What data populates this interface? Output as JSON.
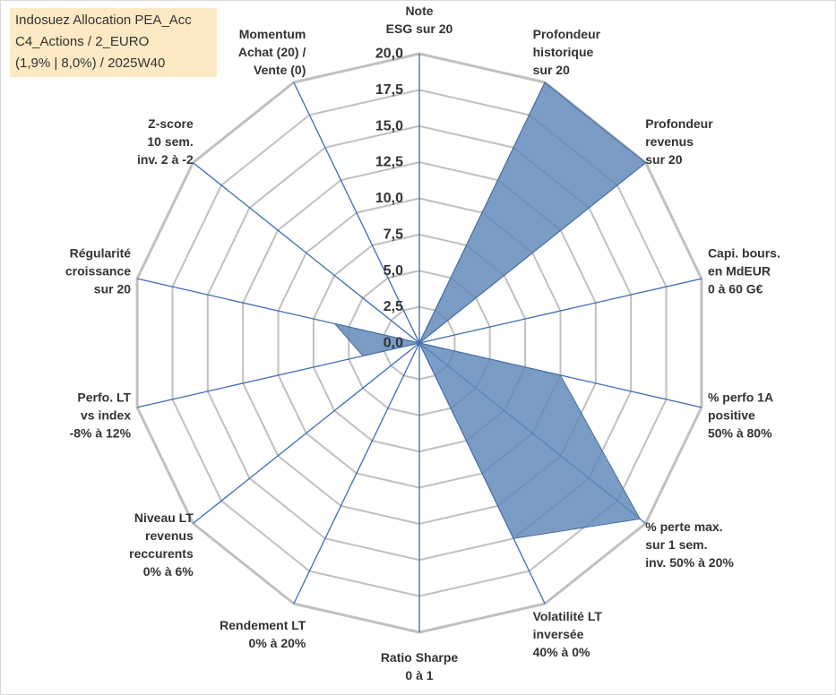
{
  "title_lines": [
    "Indosuez Allocation PEA_Acc",
    "C4_Actions / 2_EURO",
    "(1,9% | 8,0%) / 2025W40"
  ],
  "colors": {
    "fill": "#5e87b8",
    "fill_stroke": "#4a70a0",
    "grid": "#c0c0c0",
    "spoke": "#3f6bb5",
    "text": "#333333",
    "title_bg": "#fde9c4"
  },
  "chart_data": {
    "type": "radar",
    "title": "Indosuez Allocation PEA_Acc C4_Actions / 2_EURO (1,9% | 8,0%) / 2025W40",
    "rmin": 0,
    "rmax": 20,
    "step": 2.5,
    "tick_labels": [
      "0,0",
      "2,5",
      "5,0",
      "7,5",
      "10,0",
      "12,5",
      "15,0",
      "17,5",
      "20,0"
    ],
    "axes": [
      {
        "label": [
          "Note",
          "ESG sur 20"
        ],
        "value": 0
      },
      {
        "label": [
          "Profondeur",
          "historique",
          "sur 20"
        ],
        "value": 20
      },
      {
        "label": [
          "Profondeur",
          "revenus",
          "sur 20"
        ],
        "value": 20
      },
      {
        "label": [
          "Capi. bours.",
          "en MdEUR",
          "0 à 60 G€"
        ],
        "value": 0
      },
      {
        "label": [
          "% perfo 1A",
          "positive",
          "50% à 80%"
        ],
        "value": 10
      },
      {
        "label": [
          "% perte max.",
          "sur 1 sem.",
          "inv. 50% à 20%"
        ],
        "value": 19.5
      },
      {
        "label": [
          "Volatilité LT",
          "inversée",
          "40% à 0%"
        ],
        "value": 15
      },
      {
        "label": [
          "Ratio Sharpe",
          "0 à 1"
        ],
        "value": 0
      },
      {
        "label": [
          "Rendement LT",
          "0% à 20%"
        ],
        "value": 0
      },
      {
        "label": [
          "Niveau LT",
          "revenus",
          "reccurents",
          "0% à 6%"
        ],
        "value": 0
      },
      {
        "label": [
          "Perfo. LT",
          "vs index",
          "-8% à 12%"
        ],
        "value": 4
      },
      {
        "label": [
          "Régularité",
          "croissance",
          "sur 20"
        ],
        "value": 6
      },
      {
        "label": [
          "Z-score",
          "10 sem.",
          "inv. 2 à -2"
        ],
        "value": 0
      },
      {
        "label": [
          "Momentum",
          "Achat (20) /",
          "Vente (0)"
        ],
        "value": 0
      }
    ]
  }
}
